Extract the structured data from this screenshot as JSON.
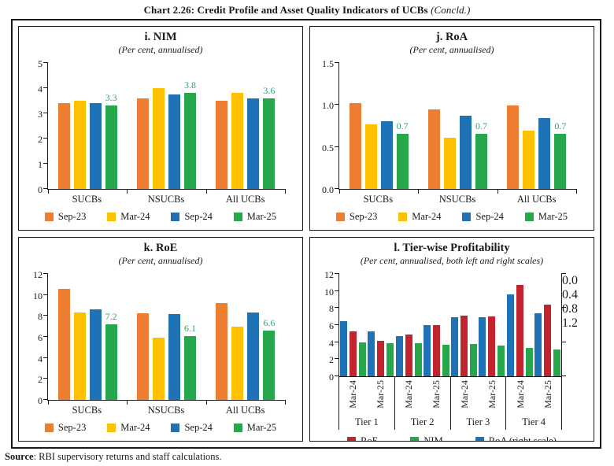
{
  "page": {
    "title_main": "Chart 2.26: Credit Profile and Asset Quality Indicators of UCBs ",
    "title_suffix": "(Concld.)",
    "source_label": "Source",
    "source_rest": ": RBI supervisory returns and staff calculations."
  },
  "colors": {
    "sep23_orange": "#ED7D31",
    "mar24_yellow": "#FFC000",
    "sep24_blue": "#1F72B5",
    "mar25_green": "#27A74B",
    "roe_red": "#C2242E",
    "axis_black": "#1a1a1a",
    "data_label": "#35A07C"
  },
  "chart_data": [
    {
      "id": "nim",
      "type": "bar",
      "title": "i. NIM",
      "subtitle": "(Per cent, annualised)",
      "categories": [
        "SUCBs",
        "NSUCBs",
        "All UCBs"
      ],
      "ylim": [
        0,
        5
      ],
      "yticks": [
        "0",
        "1",
        "2",
        "3",
        "4",
        "5"
      ],
      "grid": false,
      "legend_position": "bottom",
      "series": [
        {
          "name": "Sep-23",
          "color": "#ED7D31",
          "values": [
            3.4,
            3.6,
            3.5
          ]
        },
        {
          "name": "Mar-24",
          "color": "#FFC000",
          "values": [
            3.5,
            4.0,
            3.8
          ]
        },
        {
          "name": "Sep-24",
          "color": "#1F72B5",
          "values": [
            3.4,
            3.75,
            3.6
          ]
        },
        {
          "name": "Mar-25",
          "color": "#27A74B",
          "values": [
            3.3,
            3.8,
            3.6
          ],
          "labels": [
            "3.3",
            "3.8",
            "3.6"
          ]
        }
      ]
    },
    {
      "id": "roa",
      "type": "bar",
      "title": "j. RoA",
      "subtitle": "(Per cent, annualised)",
      "categories": [
        "SUCBs",
        "NSUCBs",
        "All UCBs"
      ],
      "ylim": [
        0,
        1.5
      ],
      "yticks": [
        "0.0",
        "0.5",
        "1.0",
        "1.5"
      ],
      "grid": false,
      "legend_position": "bottom",
      "series": [
        {
          "name": "Sep-23",
          "color": "#ED7D31",
          "values": [
            1.02,
            0.95,
            0.99
          ]
        },
        {
          "name": "Mar-24",
          "color": "#FFC000",
          "values": [
            0.77,
            0.61,
            0.69
          ]
        },
        {
          "name": "Sep-24",
          "color": "#1F72B5",
          "values": [
            0.81,
            0.87,
            0.84
          ]
        },
        {
          "name": "Mar-25",
          "color": "#27A74B",
          "values": [
            0.66,
            0.66,
            0.66
          ],
          "labels": [
            "0.7",
            "0.7",
            "0.7"
          ]
        }
      ]
    },
    {
      "id": "roe",
      "type": "bar",
      "title": "k. RoE",
      "subtitle": "(Per cent, annualised)",
      "categories": [
        "SUCBs",
        "NSUCBs",
        "All UCBs"
      ],
      "ylim": [
        0,
        12
      ],
      "yticks": [
        "0",
        "2",
        "4",
        "6",
        "8",
        "10",
        "12"
      ],
      "grid": false,
      "legend_position": "bottom",
      "series": [
        {
          "name": "Sep-23",
          "color": "#ED7D31",
          "values": [
            10.6,
            8.25,
            9.25
          ]
        },
        {
          "name": "Mar-24",
          "color": "#FFC000",
          "values": [
            8.3,
            5.95,
            7.0
          ]
        },
        {
          "name": "Sep-24",
          "color": "#1F72B5",
          "values": [
            8.6,
            8.15,
            8.35
          ]
        },
        {
          "name": "Mar-25",
          "color": "#27A74B",
          "values": [
            7.2,
            6.1,
            6.6
          ],
          "labels": [
            "7.2",
            "6.1",
            "6.6"
          ]
        }
      ]
    },
    {
      "id": "tierwise",
      "type": "bar",
      "title": "l. Tier-wise Profitability",
      "subtitle": "(Per cent, annualised, both left and right scales)",
      "categories": [
        "Mar-24",
        "Mar-25",
        "Mar-24",
        "Mar-25",
        "Mar-24",
        "Mar-25",
        "Mar-24",
        "Mar-25"
      ],
      "group_labels": [
        "Tier 1",
        "Tier 2",
        "Tier 3",
        "Tier 4"
      ],
      "ylim": [
        0,
        12
      ],
      "yticks": [
        "0",
        "2",
        "4",
        "6",
        "8",
        "10",
        "12"
      ],
      "y2lim": [
        0,
        1.2
      ],
      "y2ticks": [
        "0.0",
        "0.4",
        "0.8",
        "1.2"
      ],
      "grid": false,
      "legend_position": "bottom",
      "bar_order": [
        2,
        0,
        1
      ],
      "series": [
        {
          "name": "RoE",
          "color": "#C2242E",
          "values": [
            5.3,
            4.2,
            4.9,
            6.0,
            7.1,
            7.0,
            10.7,
            8.4
          ]
        },
        {
          "name": "NIM",
          "color": "#27A74B",
          "values": [
            4.0,
            3.85,
            3.9,
            3.7,
            3.75,
            3.6,
            3.3,
            3.1
          ]
        },
        {
          "name": "RoA (right scale)",
          "color": "#1F72B5",
          "axis": "right",
          "values": [
            0.65,
            0.53,
            0.47,
            0.6,
            0.69,
            0.69,
            0.96,
            0.74
          ]
        }
      ]
    }
  ]
}
